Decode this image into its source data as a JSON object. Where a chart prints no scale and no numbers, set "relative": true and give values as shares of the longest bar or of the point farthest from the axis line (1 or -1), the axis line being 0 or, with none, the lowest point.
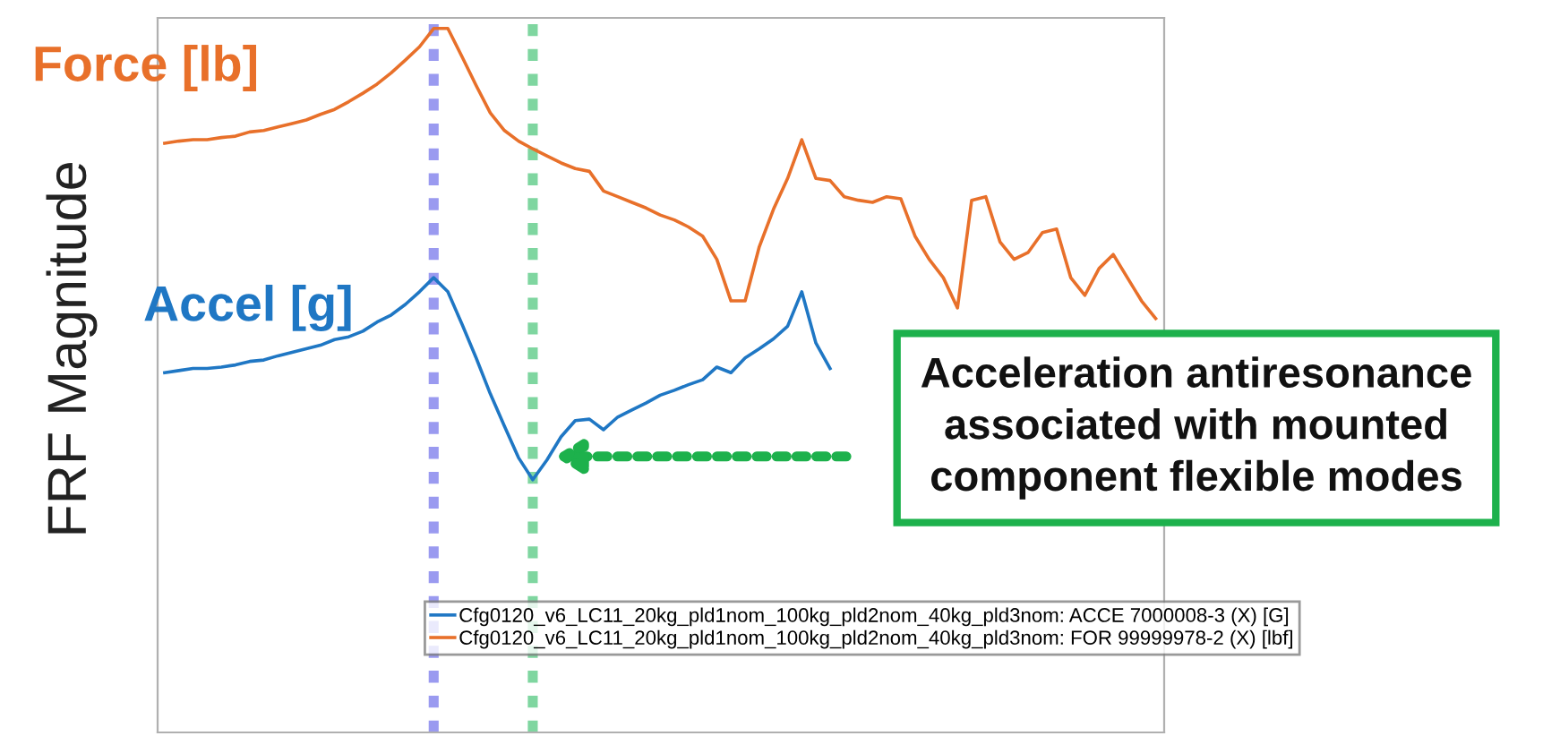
{
  "chart_data": {
    "type": "line",
    "relative": true,
    "ylabel": "FRF Magnitude",
    "legend": "bottom",
    "line_style": "solid",
    "marker": "none",
    "categories": [
      null,
      null,
      null,
      null,
      null,
      null,
      null,
      null,
      null,
      null,
      null,
      null,
      null,
      null,
      null,
      null,
      null,
      null,
      null,
      null,
      null,
      null,
      null,
      null,
      null,
      null,
      null,
      null,
      null,
      null,
      null,
      null,
      null,
      null,
      null,
      null,
      null,
      null,
      null,
      null,
      null,
      null,
      null,
      null,
      null,
      null,
      null,
      null,
      null,
      null,
      null,
      null,
      null,
      null,
      null,
      null,
      null,
      null,
      null,
      null,
      null,
      null,
      null,
      null,
      null,
      null,
      null,
      null,
      null,
      null,
      null
    ],
    "series": [
      {
        "name": "Cfg0120_v6_LC11_20kg_pld1nom_100kg_pld2nom_40kg_pld3nom: ACCE 7000008-3 (X) [G]",
        "color": "#1f77c4",
        "values": [
          0.511,
          0.514,
          0.517,
          0.517,
          0.519,
          0.522,
          0.527,
          0.529,
          0.535,
          0.54,
          0.545,
          0.55,
          0.558,
          0.562,
          0.57,
          0.583,
          0.593,
          0.608,
          0.626,
          0.646,
          0.626,
          0.58,
          0.532,
          0.481,
          0.435,
          0.39,
          0.359,
          0.387,
          0.42,
          0.443,
          0.445,
          0.43,
          0.448,
          0.458,
          0.468,
          0.479,
          0.486,
          0.494,
          0.501,
          0.519,
          0.511,
          0.532,
          0.545,
          0.559,
          0.577,
          0.626,
          0.553,
          0.517,
          null,
          null,
          null,
          null,
          null,
          null,
          null,
          null,
          null,
          null,
          null,
          null,
          null,
          null,
          null,
          null,
          null,
          null,
          null,
          null,
          null,
          null,
          null
        ]
      },
      {
        "name": "Cfg0120_v6_LC11_20kg_pld1nom_100kg_pld2nom_40kg_pld3nom: FOR 99999978-2 (X) [lbf]",
        "color": "#e8702a",
        "values": [
          0.837,
          0.84,
          0.842,
          0.842,
          0.845,
          0.847,
          0.853,
          0.855,
          0.86,
          0.865,
          0.87,
          0.878,
          0.885,
          0.896,
          0.908,
          0.921,
          0.937,
          0.955,
          0.974,
          1,
          1,
          0.96,
          0.919,
          0.88,
          0.855,
          0.84,
          0.829,
          0.819,
          0.809,
          0.801,
          0.797,
          0.769,
          0.761,
          0.753,
          0.745,
          0.735,
          0.728,
          0.718,
          0.705,
          0.672,
          0.613,
          0.613,
          0.69,
          0.743,
          0.787,
          0.842,
          0.787,
          0.784,
          0.761,
          0.756,
          0.753,
          0.761,
          0.758,
          0.705,
          0.672,
          0.646,
          0.603,
          0.756,
          0.761,
          0.697,
          0.672,
          0.682,
          0.71,
          0.715,
          0.646,
          0.621,
          0.659,
          0.679,
          0.646,
          0.613,
          0.588
        ]
      }
    ],
    "annotations": [
      "Force [lb]",
      "Accel [g]",
      "Acceleration antiresonance\nassociated with mounted\ncomponent flexible modes"
    ]
  }
}
